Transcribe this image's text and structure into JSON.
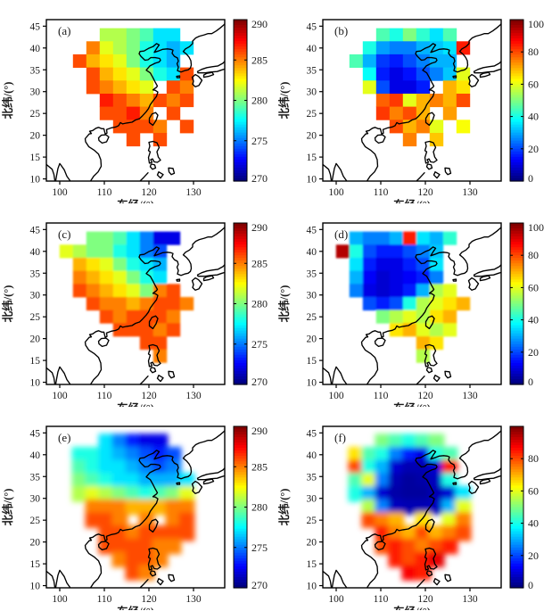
{
  "figure": {
    "xlabel": "东经/(°)",
    "ylabel": "北纬/(°)",
    "x_ticks": [
      100,
      110,
      120,
      130
    ],
    "y_ticks": [
      45,
      40,
      35,
      30,
      25,
      20,
      15,
      10
    ],
    "x_range": [
      97,
      137
    ],
    "y_range": [
      9.5,
      46.5
    ],
    "colormap": "jet",
    "background": "#ffffff",
    "coast_color": "#000000"
  },
  "chart_data": [
    {
      "panel": "(a)",
      "type": "heatmap",
      "style": "blocky",
      "colorbar": {
        "min": 270,
        "max": 290,
        "ticks": [
          290,
          285,
          280,
          275,
          270
        ]
      },
      "grid": {
        "lon_edge0": 100,
        "lat_edge0": 44.5,
        "dlon": 3,
        "dlat": 3,
        "values": [
          [
            null,
            null,
            null,
            281,
            281,
            280,
            279,
            277,
            277,
            null,
            null
          ],
          [
            null,
            null,
            285,
            282,
            281,
            280,
            278,
            277,
            276,
            277,
            null
          ],
          [
            null,
            286,
            284,
            283,
            282,
            280,
            278,
            277,
            276,
            null,
            null
          ],
          [
            null,
            null,
            286,
            284,
            283,
            282,
            280,
            278,
            277,
            286,
            null
          ],
          [
            null,
            null,
            286,
            285,
            284,
            283,
            282,
            null,
            286,
            285,
            null
          ],
          [
            null,
            null,
            null,
            287,
            286,
            285,
            284,
            286,
            285,
            286,
            null
          ],
          [
            null,
            null,
            null,
            286,
            286,
            287,
            285,
            null,
            286,
            null,
            null
          ],
          [
            null,
            null,
            null,
            null,
            286,
            286,
            286,
            285,
            null,
            286,
            null
          ],
          [
            null,
            null,
            null,
            null,
            null,
            286,
            null,
            286,
            null,
            null,
            null
          ],
          [
            null,
            null,
            null,
            null,
            null,
            null,
            null,
            null,
            null,
            null,
            null
          ],
          [
            null,
            null,
            null,
            null,
            null,
            null,
            null,
            null,
            null,
            null,
            null
          ]
        ]
      }
    },
    {
      "panel": "(b)",
      "type": "heatmap",
      "style": "blocky",
      "colorbar": {
        "min": 0,
        "max": 100,
        "ticks": [
          100,
          80,
          60,
          40,
          20,
          0
        ]
      },
      "grid": {
        "lon_edge0": 100,
        "lat_edge0": 44.5,
        "dlon": 3,
        "dlat": 3,
        "values": [
          [
            null,
            null,
            null,
            45,
            40,
            50,
            42,
            35,
            45,
            null,
            null
          ],
          [
            null,
            null,
            40,
            28,
            25,
            25,
            30,
            32,
            35,
            85,
            null
          ],
          [
            null,
            45,
            30,
            18,
            15,
            20,
            25,
            30,
            30,
            null,
            null
          ],
          [
            null,
            null,
            38,
            15,
            10,
            14,
            20,
            25,
            32,
            60,
            null
          ],
          [
            null,
            null,
            60,
            20,
            10,
            10,
            15,
            null,
            70,
            65,
            null
          ],
          [
            null,
            null,
            null,
            78,
            82,
            60,
            70,
            75,
            70,
            80,
            null
          ],
          [
            null,
            null,
            null,
            82,
            75,
            80,
            70,
            null,
            72,
            null,
            null
          ],
          [
            null,
            null,
            null,
            null,
            80,
            70,
            75,
            60,
            null,
            62,
            null
          ],
          [
            null,
            null,
            null,
            null,
            null,
            75,
            null,
            68,
            null,
            null,
            null
          ],
          [
            null,
            null,
            null,
            null,
            null,
            null,
            null,
            null,
            null,
            null,
            null
          ],
          [
            null,
            null,
            null,
            null,
            null,
            null,
            null,
            null,
            null,
            null,
            null
          ]
        ]
      }
    },
    {
      "panel": "(c)",
      "type": "heatmap",
      "style": "fine",
      "colorbar": {
        "min": 270,
        "max": 290,
        "ticks": [
          290,
          285,
          280,
          275,
          270
        ]
      },
      "grid": {
        "lon_edge0": 100,
        "lat_edge0": 44.5,
        "dlon": 3,
        "dlat": 3,
        "values": [
          [
            null,
            null,
            280,
            280,
            279,
            277,
            275,
            272,
            272,
            null,
            null
          ],
          [
            282,
            281,
            280,
            280,
            278,
            277,
            275,
            274,
            null,
            null,
            null
          ],
          [
            null,
            284,
            283,
            282,
            280,
            278,
            277,
            276,
            null,
            null,
            null
          ],
          [
            null,
            285,
            284,
            283,
            282,
            280,
            278,
            277,
            null,
            null,
            null
          ],
          [
            null,
            286,
            285,
            284,
            283,
            282,
            280,
            285,
            286,
            null,
            null
          ],
          [
            null,
            null,
            286,
            285,
            285,
            284,
            285,
            286,
            286,
            285,
            null
          ],
          [
            null,
            null,
            null,
            286,
            285,
            286,
            286,
            286,
            285,
            null,
            null
          ],
          [
            null,
            null,
            null,
            null,
            286,
            286,
            286,
            285,
            286,
            null,
            null
          ],
          [
            null,
            null,
            null,
            null,
            null,
            null,
            286,
            286,
            null,
            null,
            null
          ],
          [
            null,
            null,
            null,
            null,
            null,
            null,
            null,
            285,
            null,
            null,
            null
          ],
          [
            null,
            null,
            null,
            null,
            null,
            null,
            null,
            null,
            null,
            null,
            null
          ]
        ]
      }
    },
    {
      "panel": "(d)",
      "type": "heatmap",
      "style": "fine",
      "colorbar": {
        "min": 0,
        "max": 100,
        "ticks": [
          100,
          80,
          60,
          40,
          20,
          0
        ]
      },
      "grid": {
        "lon_edge0": 100,
        "lat_edge0": 44.5,
        "dlon": 3,
        "dlat": 3,
        "values": [
          [
            null,
            30,
            25,
            25,
            30,
            85,
            35,
            30,
            42,
            null,
            null
          ],
          [
            95,
            40,
            20,
            15,
            15,
            20,
            25,
            32,
            null,
            null,
            null
          ],
          [
            null,
            35,
            15,
            10,
            10,
            15,
            20,
            35,
            null,
            null,
            null
          ],
          [
            null,
            30,
            12,
            8,
            10,
            12,
            15,
            25,
            null,
            null,
            null
          ],
          [
            null,
            25,
            10,
            8,
            10,
            15,
            30,
            55,
            60,
            null,
            null
          ],
          [
            null,
            null,
            20,
            15,
            20,
            40,
            55,
            60,
            65,
            70,
            null
          ],
          [
            null,
            null,
            null,
            50,
            55,
            60,
            55,
            65,
            70,
            null,
            null
          ],
          [
            null,
            null,
            null,
            null,
            65,
            70,
            60,
            55,
            60,
            null,
            null
          ],
          [
            null,
            null,
            null,
            null,
            null,
            null,
            70,
            65,
            null,
            null,
            null
          ],
          [
            null,
            null,
            null,
            null,
            null,
            null,
            55,
            null,
            null,
            null,
            null
          ],
          [
            null,
            null,
            null,
            null,
            null,
            null,
            null,
            null,
            null,
            null,
            null
          ]
        ]
      }
    },
    {
      "panel": "(e)",
      "type": "heatmap",
      "style": "smooth",
      "colorbar": {
        "min": 270,
        "max": 290,
        "ticks": [
          290,
          285,
          280,
          275,
          270
        ]
      },
      "grid": {
        "lon_edge0": 100,
        "lat_edge0": 44.5,
        "dlon": 3,
        "dlat": 3,
        "values": [
          [
            null,
            null,
            null,
            277,
            275,
            273,
            272,
            272,
            null,
            null,
            null
          ],
          [
            null,
            278,
            278,
            277,
            276,
            275,
            274,
            273,
            274,
            null,
            null
          ],
          [
            null,
            279,
            278,
            277,
            277,
            276,
            275,
            274,
            275,
            null,
            null
          ],
          [
            null,
            280,
            279,
            278,
            277,
            277,
            276,
            276,
            276,
            277,
            null
          ],
          [
            null,
            281,
            282,
            281,
            280,
            279,
            278,
            279,
            280,
            282,
            null
          ],
          [
            null,
            null,
            285,
            285,
            285,
            284,
            284,
            284,
            285,
            285,
            null
          ],
          [
            null,
            null,
            286,
            286,
            285,
            null,
            285,
            null,
            285,
            286,
            null
          ],
          [
            null,
            null,
            null,
            286,
            286,
            285,
            286,
            286,
            286,
            286,
            null
          ],
          [
            null,
            null,
            null,
            286,
            286,
            286,
            286,
            285,
            285,
            null,
            null
          ],
          [
            null,
            null,
            null,
            null,
            285,
            286,
            286,
            285,
            null,
            null,
            null
          ],
          [
            null,
            null,
            null,
            null,
            null,
            286,
            285,
            null,
            null,
            null,
            null
          ]
        ]
      }
    },
    {
      "panel": "(f)",
      "type": "heatmap",
      "style": "smooth",
      "colorbar": {
        "min": 0,
        "max": 100,
        "ticks": [
          80,
          60,
          40,
          20,
          0
        ]
      },
      "grid": {
        "lon_edge0": 100,
        "lat_edge0": 44.5,
        "dlon": 3,
        "dlat": 3,
        "values": [
          [
            null,
            null,
            null,
            50,
            45,
            40,
            45,
            50,
            null,
            null,
            null
          ],
          [
            null,
            65,
            45,
            40,
            25,
            15,
            10,
            40,
            45,
            null,
            null
          ],
          [
            null,
            80,
            40,
            30,
            8,
            5,
            5,
            8,
            85,
            null,
            null
          ],
          [
            null,
            45,
            60,
            25,
            5,
            3,
            4,
            6,
            40,
            null,
            null
          ],
          [
            null,
            40,
            30,
            8,
            4,
            3,
            3,
            5,
            8,
            35,
            null
          ],
          [
            null,
            null,
            55,
            25,
            6,
            5,
            5,
            6,
            30,
            60,
            null
          ],
          [
            null,
            null,
            80,
            75,
            70,
            null,
            65,
            null,
            60,
            75,
            null
          ],
          [
            null,
            null,
            null,
            85,
            75,
            70,
            80,
            70,
            75,
            80,
            null
          ],
          [
            null,
            null,
            null,
            80,
            85,
            80,
            75,
            80,
            85,
            null,
            null
          ],
          [
            null,
            null,
            null,
            null,
            85,
            80,
            85,
            90,
            null,
            null,
            null
          ],
          [
            null,
            null,
            null,
            null,
            null,
            88,
            85,
            null,
            null,
            null,
            null
          ]
        ]
      }
    }
  ]
}
